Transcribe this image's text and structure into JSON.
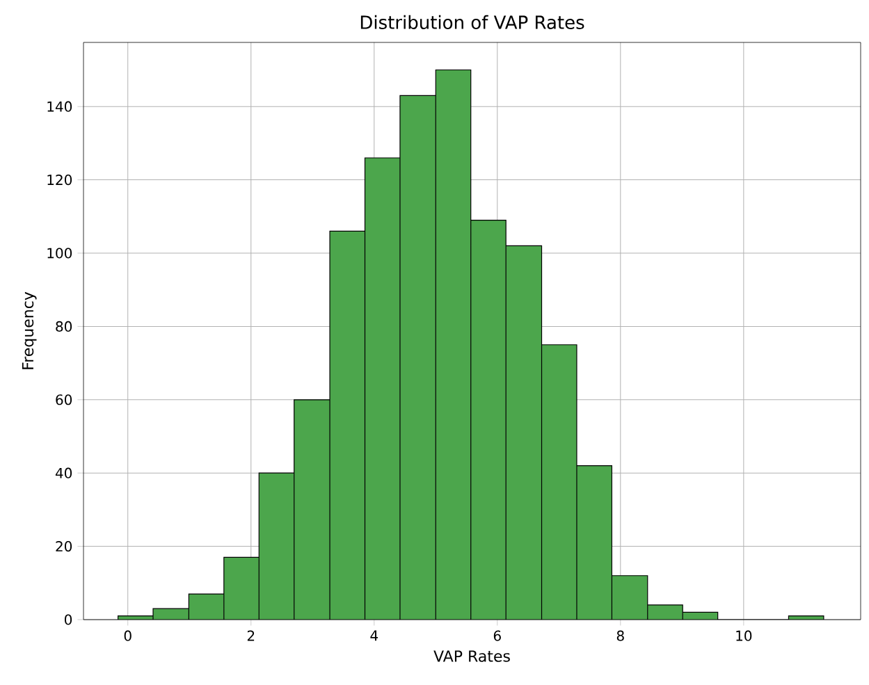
{
  "chart_data": {
    "type": "histogram",
    "title": "Distribution of VAP Rates",
    "xlabel": "VAP Rates",
    "ylabel": "Frequency",
    "bins": [
      -0.16,
      0.41,
      0.99,
      1.56,
      2.13,
      2.7,
      3.28,
      3.85,
      4.42,
      5.0,
      5.57,
      6.14,
      6.72,
      7.29,
      7.86,
      8.44,
      9.01,
      9.58,
      10.73,
      11.3
    ],
    "values": [
      1,
      3,
      7,
      17,
      40,
      60,
      106,
      126,
      143,
      150,
      109,
      102,
      75,
      42,
      12,
      4,
      2,
      0,
      1
    ],
    "color": "#4ca64c",
    "xlim": [
      -0.72,
      11.9
    ],
    "ylim": [
      0,
      157.5
    ],
    "xticks": [
      0,
      2,
      4,
      6,
      8,
      10
    ],
    "yticks": [
      0,
      20,
      40,
      60,
      80,
      100,
      120,
      140
    ],
    "grid": true
  }
}
